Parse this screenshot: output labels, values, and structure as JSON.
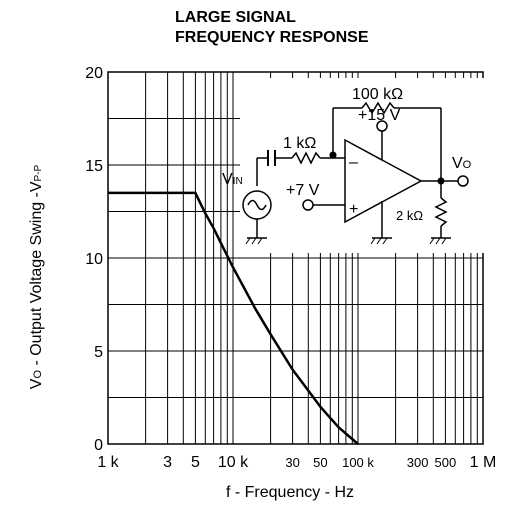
{
  "chart_data": {
    "type": "line",
    "title": [
      "LARGE SIGNAL",
      "FREQUENCY RESPONSE"
    ],
    "xlabel": "f - Frequency - Hz",
    "ylabel_parts": [
      "V",
      "O",
      " - Output Voltage Swing -V",
      "P-P"
    ],
    "x_scale": "log",
    "xlim": [
      1000,
      1000000
    ],
    "ylim": [
      0,
      20
    ],
    "x_ticks": [
      {
        "value": 1000,
        "label": "1 k",
        "size": "large"
      },
      {
        "value": 3000,
        "label": "3",
        "size": "large"
      },
      {
        "value": 5000,
        "label": "5",
        "size": "large"
      },
      {
        "value": 10000,
        "label": "10 k",
        "size": "large"
      },
      {
        "value": 30000,
        "label": "30",
        "size": "small"
      },
      {
        "value": 50000,
        "label": "50",
        "size": "small"
      },
      {
        "value": 100000,
        "label": "100 k",
        "size": "small"
      },
      {
        "value": 300000,
        "label": "300",
        "size": "small"
      },
      {
        "value": 500000,
        "label": "500",
        "size": "small"
      },
      {
        "value": 1000000,
        "label": "1 M",
        "size": "large"
      }
    ],
    "y_ticks": [
      {
        "value": 0,
        "label": "0"
      },
      {
        "value": 5,
        "label": "5"
      },
      {
        "value": 10,
        "label": "10"
      },
      {
        "value": 15,
        "label": "15"
      },
      {
        "value": 20,
        "label": "20"
      }
    ],
    "series": [
      {
        "x": [
          1000,
          2000,
          3000,
          5000,
          6000,
          7000,
          8000,
          10000,
          15000,
          20000,
          30000,
          50000,
          70000,
          100000
        ],
        "y": [
          13.5,
          13.5,
          13.5,
          13.5,
          12.4,
          11.6,
          10.8,
          9.5,
          7.3,
          5.9,
          4.0,
          2.0,
          0.9,
          0
        ]
      }
    ],
    "grid": true
  },
  "circuit": {
    "feedback_resistor": "100 kΩ",
    "input_resistor": "1 kΩ",
    "supply": "+15 V",
    "bias": "+7 V",
    "load_resistor": "2 kΩ",
    "input_source": [
      "V",
      "IN"
    ],
    "output": [
      "V",
      "O"
    ],
    "minus_sign": "–",
    "plus_sign": "+"
  }
}
